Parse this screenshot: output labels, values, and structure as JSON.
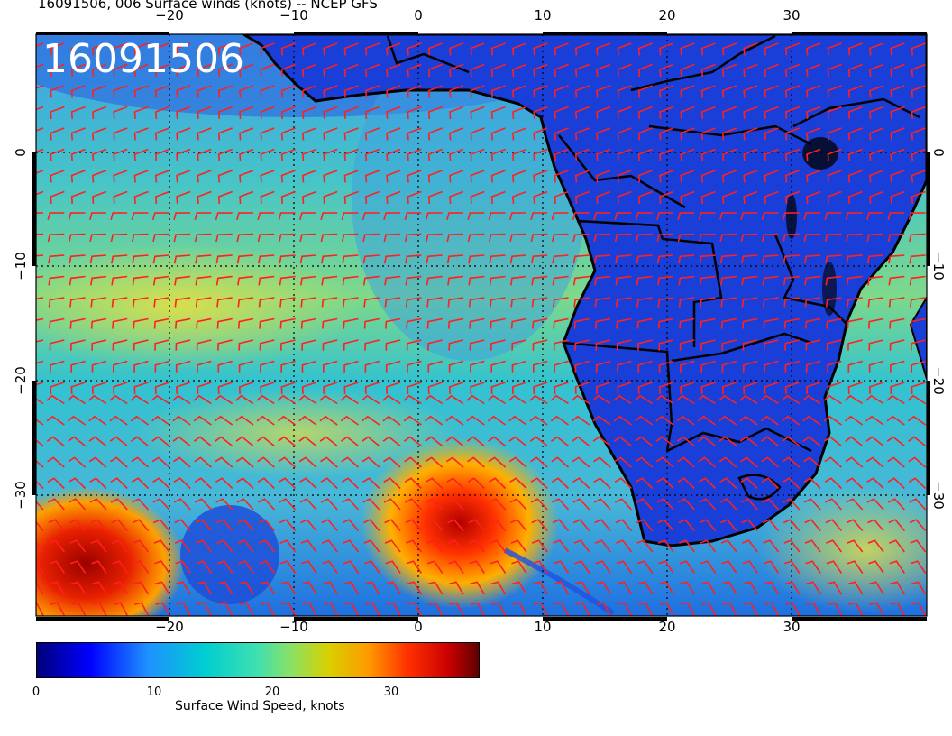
{
  "header": {
    "title": "16091506, 006 Surface winds (knots) -- NCEP GFS"
  },
  "map": {
    "stamp": "16091506",
    "lon_ticks": [
      "−20",
      "−10",
      "0",
      "10",
      "20",
      "30"
    ],
    "lat_ticks": [
      "0",
      "−10",
      "−20",
      "−30"
    ],
    "colors": {
      "barb": "#ff2020",
      "land": "#1e3fd0",
      "coast": "#000000"
    }
  },
  "colorbar": {
    "label": "Surface Wind Speed, knots",
    "ticks": [
      "0",
      "10",
      "20",
      "30"
    ],
    "scale": [
      "#00008b",
      "#0000ff",
      "#1e90ff",
      "#00ced1",
      "#40e0d0",
      "#7fff7f",
      "#d4d400",
      "#ffa500",
      "#ff4500",
      "#cc0000",
      "#5a0000"
    ]
  }
}
